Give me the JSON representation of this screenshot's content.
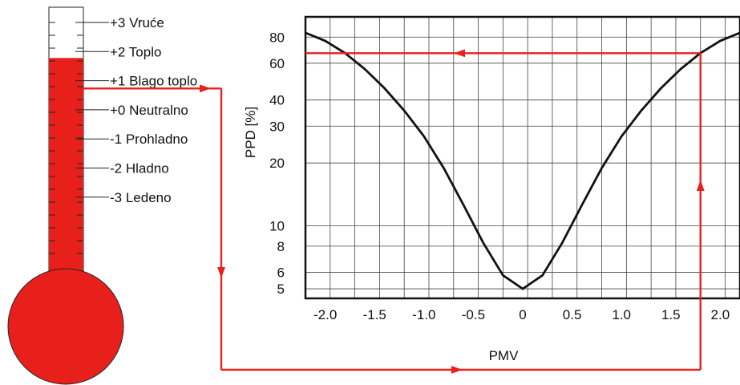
{
  "thermometer": {
    "scale": [
      {
        "label": "+3 Vruće"
      },
      {
        "label": "+2 Toplo"
      },
      {
        "label": "+1 Blago toplo"
      },
      {
        "label": "+0 Neutralno"
      },
      {
        "label": "-1 Prohladno"
      },
      {
        "label": "-2 Hladno"
      },
      {
        "label": "-3 Ledeno"
      }
    ],
    "fill_color": "#e8201c",
    "fill_level_pmv": 2
  },
  "chart_data": {
    "type": "line",
    "xlabel": "PMV",
    "ylabel": "PPD [%]",
    "x_ticks": [
      "-2.0",
      "-1.5",
      "-1.0",
      "-0.5",
      "0",
      "0.5",
      "1.0",
      "1.5",
      "2.0"
    ],
    "y_ticks": [
      "5",
      "6",
      "8",
      "10",
      "20",
      "30",
      "40",
      "60",
      "80"
    ],
    "y_scale": "log",
    "xlim": [
      -2.2,
      2.2
    ],
    "ylim": [
      4.5,
      100
    ],
    "grid": true,
    "series": [
      {
        "x": [
          -2.2,
          -2.0,
          -1.8,
          -1.6,
          -1.4,
          -1.2,
          -1.0,
          -0.8,
          -0.6,
          -0.4,
          -0.2,
          0,
          0.2,
          0.4,
          0.6,
          0.8,
          1.0,
          1.2,
          1.4,
          1.6,
          1.8,
          2.0,
          2.2
        ],
        "y": [
          83.9,
          76.8,
          67.1,
          56.3,
          45.6,
          35.6,
          26.8,
          18.9,
          12.6,
          8.3,
          5.8,
          5.0,
          5.8,
          8.3,
          12.6,
          18.9,
          26.8,
          35.6,
          45.6,
          56.3,
          67.1,
          76.8,
          83.9
        ]
      }
    ],
    "example": {
      "pmv": 1.8,
      "ppd": 67
    },
    "arrow_color": "#e8201c",
    "curve_color": "#111111"
  }
}
